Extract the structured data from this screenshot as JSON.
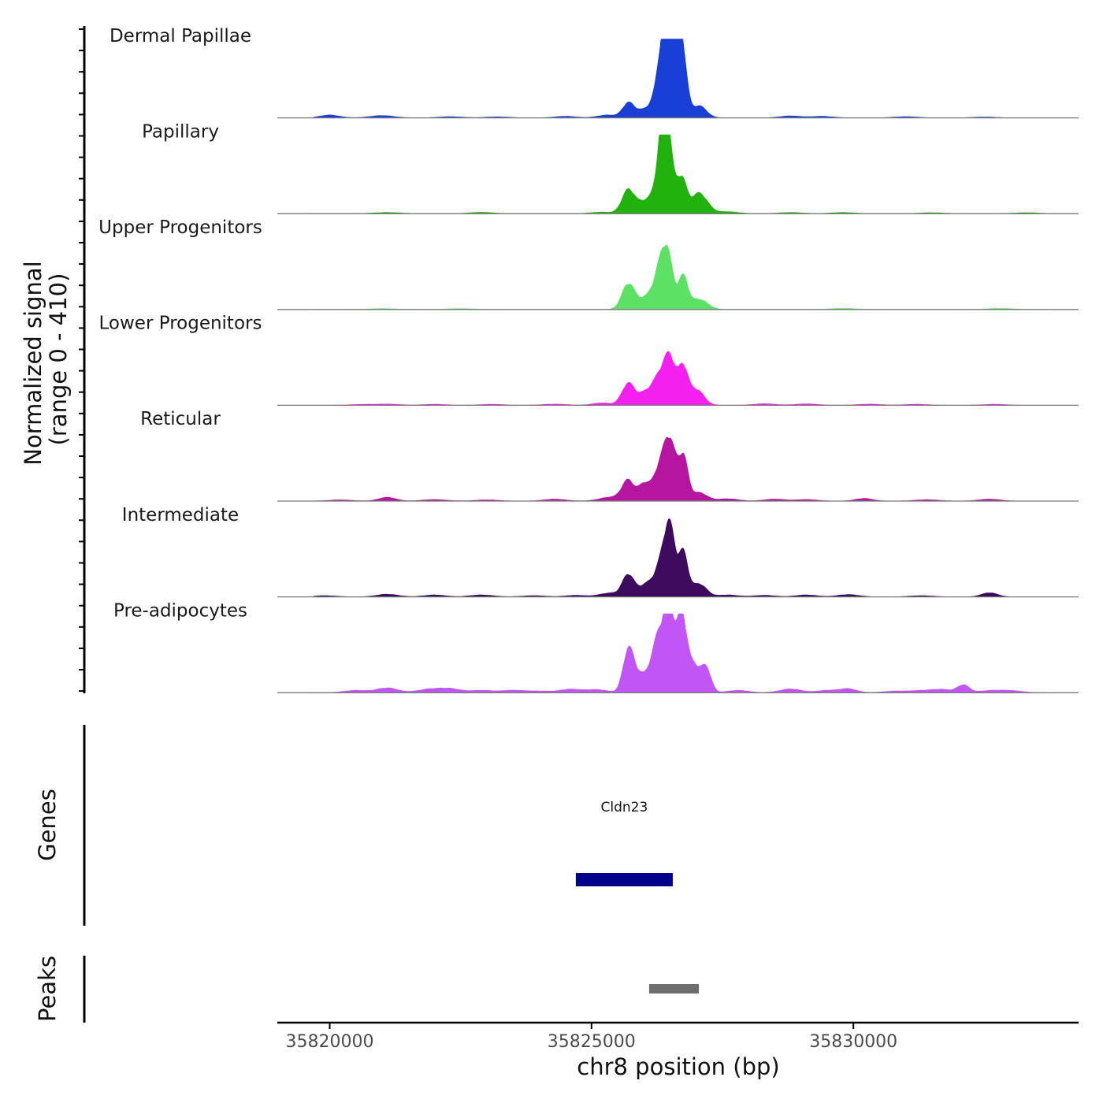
{
  "chart_data": {
    "type": "area",
    "title": "",
    "ylabel_line1": "Normalized signal",
    "ylabel_line2": "(range 0 - 410)",
    "y_range": [
      0,
      410
    ],
    "xlabel": "chr8 position (bp)",
    "x_range": [
      35819000,
      35834300
    ],
    "x_ticks": [
      35820000,
      35825000,
      35830000
    ],
    "x_tick_labels": [
      "35820000",
      "35825000",
      "35830000"
    ],
    "tracks": [
      {
        "name": "Dermal Papillae",
        "color": "#1a3fd6",
        "peaks": [
          [
            35825700,
            75,
            110
          ],
          [
            35826000,
            40,
            160
          ],
          [
            35826450,
            400,
            110
          ],
          [
            35826350,
            210,
            140
          ],
          [
            35826600,
            180,
            120
          ],
          [
            35826720,
            340,
            90
          ],
          [
            35827050,
            65,
            140
          ],
          [
            35825300,
            15,
            180
          ]
        ],
        "background": [
          [
            35820000,
            15,
            180
          ],
          [
            35821000,
            12,
            220
          ],
          [
            35822300,
            6,
            220
          ],
          [
            35823200,
            5,
            220
          ],
          [
            35824500,
            8,
            200
          ],
          [
            35828800,
            10,
            200
          ],
          [
            35829400,
            8,
            200
          ],
          [
            35831000,
            6,
            220
          ],
          [
            35832500,
            4,
            220
          ]
        ]
      },
      {
        "name": "Papillary",
        "color": "#22b20e",
        "peaks": [
          [
            35825700,
            125,
            120
          ],
          [
            35826050,
            70,
            160
          ],
          [
            35826400,
            250,
            90
          ],
          [
            35826400,
            390,
            130
          ],
          [
            35826720,
            175,
            90
          ],
          [
            35827050,
            110,
            160
          ],
          [
            35825200,
            8,
            200
          ],
          [
            35827600,
            10,
            200
          ]
        ],
        "background": [
          [
            35821100,
            6,
            260
          ],
          [
            35822900,
            7,
            220
          ],
          [
            35828800,
            6,
            220
          ],
          [
            35829800,
            6,
            220
          ],
          [
            35831500,
            5,
            220
          ],
          [
            35833300,
            5,
            220
          ]
        ]
      },
      {
        "name": "Upper Progenitors",
        "color": "#5ce165",
        "peaks": [
          [
            35825700,
            135,
            120
          ],
          [
            35826050,
            60,
            160
          ],
          [
            35826300,
            160,
            120
          ],
          [
            35826450,
            260,
            110
          ],
          [
            35826750,
            170,
            90
          ],
          [
            35827050,
            55,
            160
          ]
        ],
        "background": [
          [
            35821000,
            4,
            250
          ],
          [
            35822500,
            4,
            250
          ],
          [
            35829800,
            5,
            250
          ],
          [
            35832800,
            5,
            250
          ]
        ]
      },
      {
        "name": "Lower Progenitors",
        "color": "#f51ff0",
        "peaks": [
          [
            35825700,
            115,
            120
          ],
          [
            35826050,
            70,
            150
          ],
          [
            35826300,
            130,
            120
          ],
          [
            35826500,
            240,
            110
          ],
          [
            35826750,
            190,
            90
          ],
          [
            35827000,
            85,
            140
          ]
        ],
        "background": [
          [
            35820600,
            4,
            220
          ],
          [
            35821100,
            6,
            220
          ],
          [
            35822000,
            5,
            220
          ],
          [
            35823100,
            5,
            220
          ],
          [
            35824300,
            6,
            220
          ],
          [
            35825200,
            12,
            180
          ],
          [
            35828300,
            8,
            200
          ],
          [
            35829100,
            7,
            220
          ],
          [
            35830300,
            6,
            220
          ],
          [
            35831200,
            5,
            220
          ],
          [
            35832700,
            5,
            220
          ]
        ]
      },
      {
        "name": "Reticular",
        "color": "#b5159f",
        "peaks": [
          [
            35825700,
            110,
            120
          ],
          [
            35826000,
            85,
            100
          ],
          [
            35826300,
            170,
            130
          ],
          [
            35826500,
            290,
            110
          ],
          [
            35826750,
            230,
            90
          ],
          [
            35827050,
            45,
            150
          ],
          [
            35825350,
            20,
            200
          ]
        ],
        "background": [
          [
            35820200,
            6,
            220
          ],
          [
            35821100,
            20,
            160
          ],
          [
            35822000,
            8,
            220
          ],
          [
            35823000,
            6,
            220
          ],
          [
            35824300,
            10,
            200
          ],
          [
            35827600,
            12,
            200
          ],
          [
            35828500,
            10,
            200
          ],
          [
            35829100,
            8,
            200
          ],
          [
            35830200,
            14,
            160
          ],
          [
            35831400,
            7,
            220
          ],
          [
            35832600,
            10,
            200
          ]
        ]
      },
      {
        "name": "Intermediate",
        "color": "#3d0a5e",
        "peaks": [
          [
            35825700,
            115,
            110
          ],
          [
            35826050,
            65,
            150
          ],
          [
            35826350,
            170,
            130
          ],
          [
            35826500,
            310,
            100
          ],
          [
            35826750,
            230,
            90
          ],
          [
            35827050,
            70,
            140
          ],
          [
            35825350,
            20,
            200
          ]
        ],
        "background": [
          [
            35819900,
            6,
            220
          ],
          [
            35821100,
            14,
            200
          ],
          [
            35822000,
            10,
            200
          ],
          [
            35822900,
            10,
            220
          ],
          [
            35823900,
            6,
            220
          ],
          [
            35824700,
            8,
            200
          ],
          [
            35827600,
            10,
            200
          ],
          [
            35828300,
            8,
            200
          ],
          [
            35829100,
            10,
            200
          ],
          [
            35829900,
            12,
            200
          ],
          [
            35831300,
            6,
            220
          ],
          [
            35832600,
            22,
            150
          ]
        ]
      },
      {
        "name": "Pre-adipocytes",
        "color": "#c155f5",
        "peaks": [
          [
            35825700,
            210,
            100
          ],
          [
            35825900,
            90,
            140
          ],
          [
            35826200,
            140,
            120
          ],
          [
            35826350,
            250,
            120
          ],
          [
            35826500,
            360,
            90
          ],
          [
            35826720,
            390,
            90
          ],
          [
            35826950,
            150,
            140
          ],
          [
            35827200,
            110,
            90
          ]
        ],
        "background": [
          [
            35820500,
            12,
            220
          ],
          [
            35821100,
            25,
            200
          ],
          [
            35821900,
            18,
            220
          ],
          [
            35822300,
            20,
            200
          ],
          [
            35822900,
            12,
            220
          ],
          [
            35823500,
            12,
            220
          ],
          [
            35824000,
            8,
            220
          ],
          [
            35824600,
            18,
            200
          ],
          [
            35825100,
            16,
            200
          ],
          [
            35827800,
            12,
            200
          ],
          [
            35828800,
            20,
            200
          ],
          [
            35829500,
            12,
            200
          ],
          [
            35829900,
            20,
            160
          ],
          [
            35830800,
            8,
            220
          ],
          [
            35831300,
            10,
            220
          ],
          [
            35831700,
            16,
            200
          ],
          [
            35832100,
            40,
            110
          ],
          [
            35832600,
            10,
            220
          ],
          [
            35833000,
            10,
            220
          ]
        ]
      }
    ],
    "genes": {
      "label": "Genes",
      "items": [
        {
          "name": "Cldn23",
          "start": 35824700,
          "end": 35826550,
          "color": "#00008b"
        }
      ]
    },
    "peaks_track": {
      "label": "Peaks",
      "items": [
        {
          "start": 35826100,
          "end": 35827050,
          "color": "#6e6e6e"
        }
      ]
    }
  }
}
